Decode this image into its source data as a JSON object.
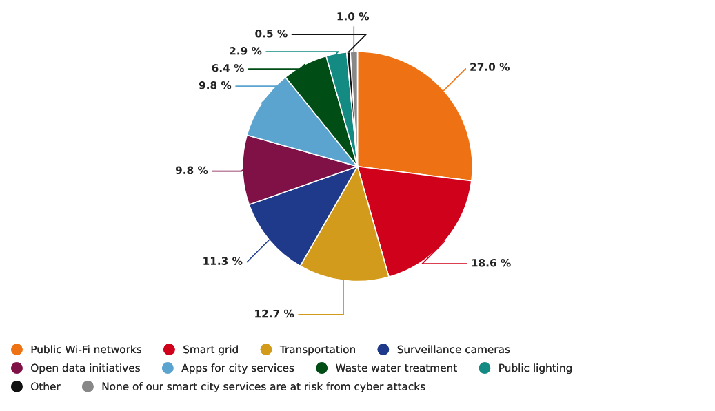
{
  "chart_data": {
    "type": "pie",
    "categories": [
      "Public Wi-Fi networks",
      "Smart grid",
      "Transportation",
      "Surveillance cameras",
      "Open data initiatives",
      "Apps for city services",
      "Waste water treatment",
      "Public lighting",
      "Other",
      "None of our smart city services are at risk from cyber attacks"
    ],
    "values": [
      27.0,
      18.6,
      12.7,
      11.3,
      9.8,
      9.8,
      6.4,
      2.9,
      0.5,
      1.0
    ],
    "colors": [
      "#ee7213",
      "#d0021b",
      "#d39b1b",
      "#1f3a8a",
      "#7f1146",
      "#5ba4cf",
      "#004d16",
      "#138a82",
      "#111111",
      "#888888"
    ],
    "value_labels": [
      "27.0 %",
      "18.6 %",
      "12.7 %",
      "11.3 %",
      "9.8 %",
      "9.8 %",
      "6.4 %",
      "2.9 %",
      "0.5 %",
      "1.0 %"
    ],
    "legend": "bottom"
  }
}
